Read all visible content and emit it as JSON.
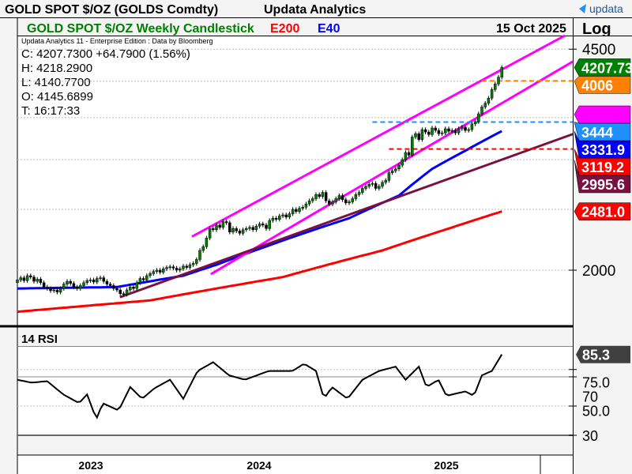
{
  "header": {
    "title": "GOLD SPOT $/OZ (GOLDS Comdty)",
    "vendor": "Updata Analytics",
    "logo": "updata"
  },
  "chart_header": {
    "title": "GOLD SPOT $/OZ Weekly Candlestick",
    "e200": "E200",
    "e40": "E40",
    "date": "15 Oct 2025",
    "scale": "Log"
  },
  "info": {
    "source": "Updata Analytics 11 - Enterprise Edition : Data by Bloomberg",
    "close": "C: 4207.7300  +64.7900 (1.56%)",
    "high": "H: 4218.2900",
    "low": "L: 4140.7700",
    "open": "O: 4145.6899",
    "time": "T: 16:17:33"
  },
  "colors": {
    "up": "#008000",
    "e200": "#ff0000",
    "e40": "#0000ff",
    "channel": "#ff00ff",
    "trend": "#7a1040",
    "blue_dash": "#1e90ff",
    "red_dash": "#ff0000",
    "orange_dash": "#ff8000"
  },
  "chart_data": [
    {
      "type": "candlestick",
      "title": "GOLD SPOT $/OZ Weekly Candlestick",
      "scale": "log",
      "yticks": [
        4500,
        2000
      ],
      "ytick_labels": [
        "4500",
        "2000"
      ],
      "x_labels": [
        "2023",
        "2024",
        "2025"
      ],
      "closes": [
        1930,
        1945,
        1925,
        1960,
        1950,
        1920,
        1935,
        1910,
        1880,
        1870,
        1855,
        1860,
        1845,
        1870,
        1900,
        1920,
        1905,
        1880,
        1870,
        1890,
        1910,
        1925,
        1930,
        1915,
        1940,
        1945,
        1920,
        1900,
        1890,
        1870,
        1860,
        1835,
        1830,
        1860,
        1880,
        1870,
        1910,
        1940,
        1930,
        1960,
        1975,
        1990,
        2000,
        1985,
        2010,
        2020,
        2025,
        2015,
        2000,
        2010,
        2030,
        2020,
        2040,
        2050,
        2080,
        2150,
        2180,
        2250,
        2330,
        2320,
        2360,
        2340,
        2390,
        2380,
        2300,
        2330,
        2310,
        2290,
        2320,
        2330,
        2340,
        2320,
        2350,
        2370,
        2360,
        2330,
        2400,
        2420,
        2410,
        2440,
        2450,
        2430,
        2460,
        2500,
        2480,
        2510,
        2520,
        2550,
        2580,
        2600,
        2640,
        2620,
        2660,
        2580,
        2550,
        2570,
        2600,
        2630,
        2590,
        2560,
        2570,
        2600,
        2640,
        2660,
        2700,
        2720,
        2740,
        2750,
        2700,
        2720,
        2760,
        2780,
        2860,
        2880,
        2900,
        2940,
        3000,
        3080,
        3050,
        3260,
        3300,
        3230,
        3350,
        3320,
        3290,
        3370,
        3340,
        3300,
        3310,
        3360,
        3330,
        3340,
        3310,
        3360,
        3380,
        3340,
        3350,
        3420,
        3450,
        3550,
        3640,
        3690,
        3760,
        3880,
        3960,
        4060,
        4208
      ],
      "e40": [
        [
          0,
          1870
        ],
        [
          30,
          1880
        ],
        [
          50,
          1960
        ],
        [
          60,
          2040
        ],
        [
          80,
          2230
        ],
        [
          100,
          2420
        ],
        [
          115,
          2630
        ],
        [
          125,
          2900
        ],
        [
          135,
          3100
        ],
        [
          146,
          3331.9
        ]
      ],
      "e200": [
        [
          0,
          1717
        ],
        [
          40,
          1790
        ],
        [
          80,
          1950
        ],
        [
          110,
          2150
        ],
        [
          130,
          2330
        ],
        [
          146,
          2481.0
        ]
      ],
      "trendlines": [
        {
          "name": "channel-upper",
          "color": "#ff00ff",
          "p1": [
            52.6,
            2262
          ],
          "p2": [
            165,
            4730
          ]
        },
        {
          "name": "channel-lower",
          "color": "#ff00ff",
          "p1": [
            58.3,
            1971
          ],
          "p2": [
            167.4,
            4300
          ]
        },
        {
          "name": "support",
          "color": "#7a1040",
          "p1": [
            30.9,
            1811
          ],
          "p2": [
            167.4,
            3295
          ]
        }
      ],
      "levels": [
        {
          "name": "blue-dash",
          "value": 3444,
          "from_week": 107,
          "color": "#1e90ff"
        },
        {
          "name": "red-dash",
          "value": 3119.2,
          "from_week": 112,
          "color": "#ff0000"
        },
        {
          "name": "orange-dash",
          "value": 4006,
          "from_week": 140,
          "color": "#ff8000"
        }
      ],
      "price_tags": [
        {
          "value": 4207.73,
          "label": "4207.73",
          "color": "#008000"
        },
        {
          "value": 4006,
          "label": "4006",
          "color": "#ff8000"
        },
        {
          "value": 3540,
          "label": "",
          "color": "#ff00ff"
        },
        {
          "value": 3444,
          "label": "3444",
          "color": "#1e90ff"
        },
        {
          "value": 3331.9,
          "label": "3331.9",
          "color": "#0000ff"
        },
        {
          "value": 3119.2,
          "label": "3119.2",
          "color": "#ff0000"
        },
        {
          "value": 2995.6,
          "label": "2995.6",
          "color": "#7a1040"
        },
        {
          "value": 2481.0,
          "label": "2481.0",
          "color": "#ff0000"
        }
      ]
    },
    {
      "type": "line",
      "title": "14 RSI",
      "yticks": [
        75,
        70,
        50,
        30
      ],
      "ytick_labels": [
        "75.0",
        "70",
        "50.0",
        "30"
      ],
      "last": "85.3",
      "ylim": [
        30,
        100
      ],
      "rsi": [
        [
          0,
          68
        ],
        [
          4.3,
          66
        ],
        [
          9,
          67
        ],
        [
          13.8,
          58
        ],
        [
          18.6,
          52
        ],
        [
          21,
          58
        ],
        [
          23.8,
          41
        ],
        [
          25.7,
          52
        ],
        [
          30.5,
          47
        ],
        [
          34,
          63
        ],
        [
          37.6,
          55
        ],
        [
          41.2,
          62
        ],
        [
          46,
          68
        ],
        [
          50,
          55
        ],
        [
          54.3,
          74
        ],
        [
          59,
          80
        ],
        [
          63.8,
          71
        ],
        [
          68.6,
          68
        ],
        [
          75.7,
          74
        ],
        [
          82.9,
          74
        ],
        [
          86.4,
          79
        ],
        [
          90,
          74
        ],
        [
          92.4,
          55
        ],
        [
          94.8,
          63
        ],
        [
          99.5,
          55
        ],
        [
          104,
          68
        ],
        [
          109,
          74
        ],
        [
          114,
          77
        ],
        [
          117,
          68
        ],
        [
          121,
          77
        ],
        [
          123.3,
          63
        ],
        [
          126.9,
          68
        ],
        [
          129.3,
          57
        ],
        [
          135,
          60
        ],
        [
          137.6,
          57
        ],
        [
          140,
          71
        ],
        [
          143,
          74
        ],
        [
          146,
          85.3
        ]
      ]
    }
  ]
}
